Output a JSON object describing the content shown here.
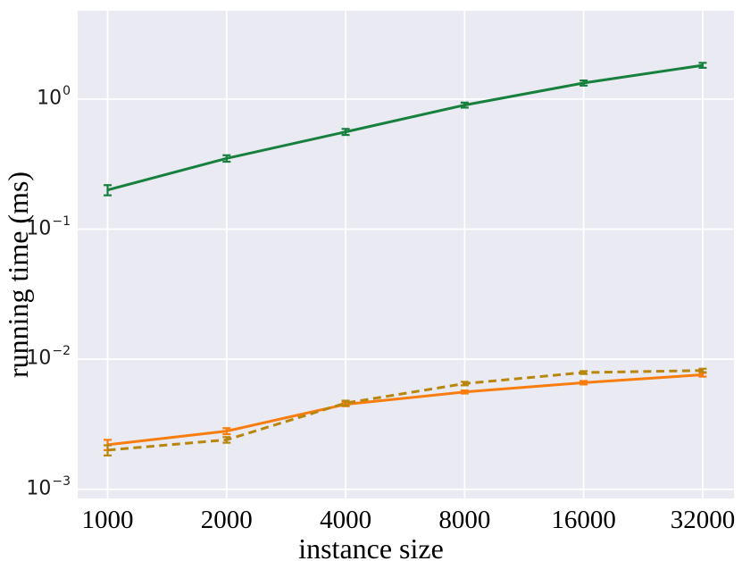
{
  "figure": {
    "background": "#ffffff",
    "plot_background": "#eaeaf2",
    "grid_color": "#ffffff",
    "tick_label_color": "#1a1a1a"
  },
  "chart_data": {
    "type": "line",
    "subtype": "errorbar",
    "title": "",
    "xlabel": "instance size",
    "ylabel": "running time (ms)",
    "x_scale": "log",
    "y_scale": "log",
    "grid": true,
    "legend_position": "none",
    "x": [
      1000,
      2000,
      4000,
      8000,
      16000,
      32000
    ],
    "x_tick_labels": [
      "1000",
      "2000",
      "4000",
      "8000",
      "16000",
      "32000"
    ],
    "y_tick_exponents": [
      0,
      -1,
      -2,
      -3
    ],
    "y_tick_base": "10",
    "xlim": [
      840,
      38400
    ],
    "ylim": [
      0.00085,
      4.78
    ],
    "series": [
      {
        "name": "green-solid",
        "color": "#17803e",
        "style": "solid",
        "values": [
          0.2,
          0.35,
          0.56,
          0.9,
          1.33,
          1.82
        ],
        "yerr": [
          0.018,
          0.02,
          0.03,
          0.04,
          0.06,
          0.08
        ]
      },
      {
        "name": "orange-solid",
        "color": "#f97d0e",
        "style": "solid",
        "values": [
          0.0022,
          0.0028,
          0.0045,
          0.0056,
          0.0066,
          0.0076
        ],
        "yerr": [
          0.0002,
          0.00015,
          0.00015,
          0.00015,
          0.0002,
          0.00025
        ]
      },
      {
        "name": "olive-dashed",
        "color": "#b8860b",
        "style": "dashed",
        "values": [
          0.002,
          0.0024,
          0.0046,
          0.0065,
          0.0079,
          0.0082
        ],
        "yerr": [
          0.00018,
          0.00012,
          0.0002,
          0.0002,
          0.0002,
          0.00025
        ]
      }
    ]
  }
}
